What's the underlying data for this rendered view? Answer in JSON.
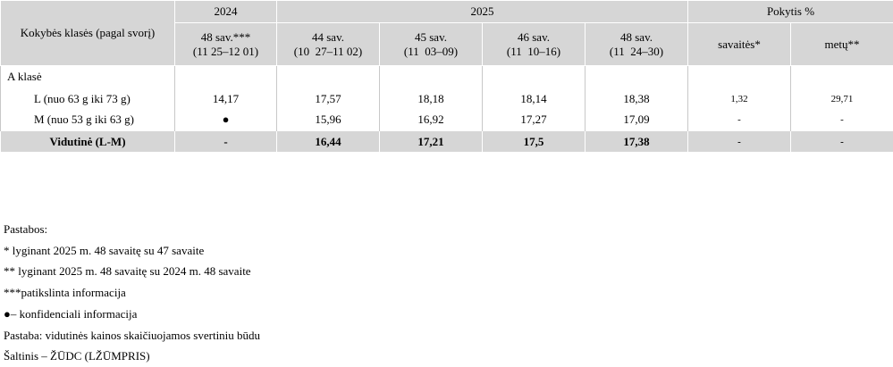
{
  "table": {
    "header": {
      "first": "Kokybės klasės (pagal svorį)",
      "year_a": "2024",
      "year_b": "2025",
      "change": "Pokytis %",
      "weeks": [
        [
          "48 sav.***",
          "(11 25–12 01)"
        ],
        [
          "44 sav.",
          "(10  27–11 02)"
        ],
        [
          "45 sav.",
          "(11  03–09)"
        ],
        [
          "46 sav.",
          "(11  10–16)"
        ],
        [
          "48 sav.",
          "(11  24–30)"
        ]
      ],
      "change_cols": [
        "savaitės*",
        "metų**"
      ]
    },
    "group": "A klasė",
    "rows": [
      {
        "label": "L (nuo 63 g iki 73 g)",
        "cells": [
          "14,17",
          "17,57",
          "18,18",
          "18,14",
          "18,38",
          "1,32",
          "29,71"
        ]
      },
      {
        "label": "M (nuo 53 g iki 63 g)",
        "cells": [
          "●",
          "15,96",
          "16,92",
          "17,27",
          "17,09",
          "-",
          "-"
        ]
      }
    ],
    "total": {
      "label": "Vidutinė (L-M)",
      "cells": [
        "-",
        "16,44",
        "17,21",
        "17,5",
        "17,38",
        "-",
        "-"
      ]
    }
  },
  "notes": [
    "Pastabos:",
    "* lyginant 2025 m. 48 savaitę su 47 savaite",
    "** lyginant 2025 m. 48 savaitę su 2024 m. 48 savaite",
    "***patikslinta informacija",
    "●– konfidenciali informacija",
    "Pastaba: vidutinės kainos skaičiuojamos svertiniu būdu",
    "Šaltinis – ŽŪDC (LŽŪMPRIS)"
  ]
}
